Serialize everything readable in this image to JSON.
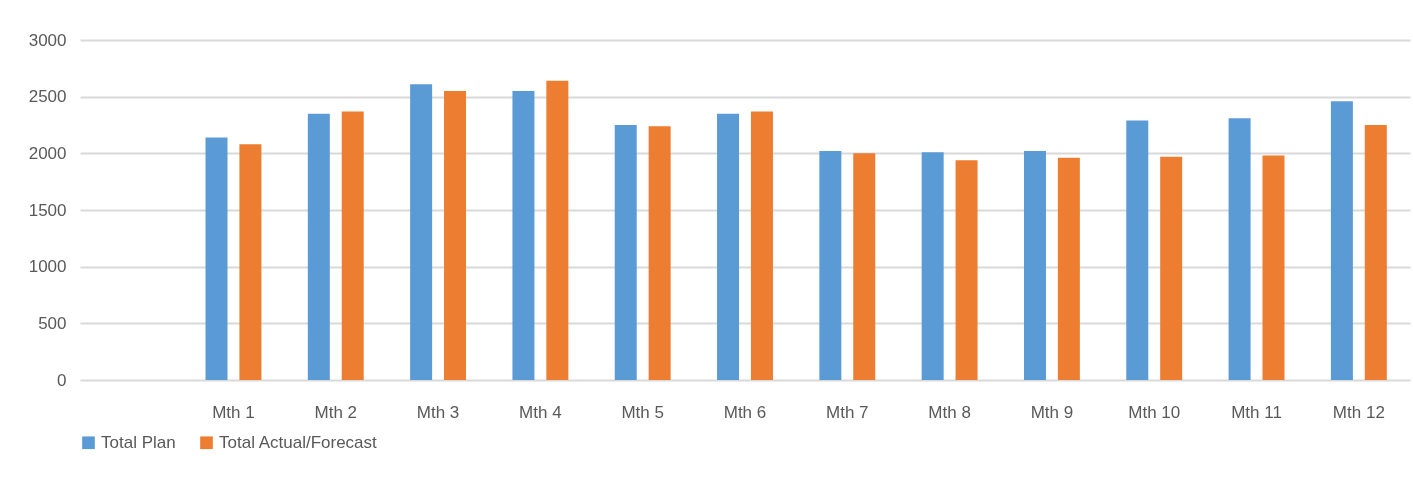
{
  "chart_data": {
    "type": "bar",
    "categories": [
      null,
      "Mth 1",
      "Mth 2",
      "Mth 3",
      "Mth 4",
      "Mth 5",
      "Mth 6",
      "Mth 7",
      "Mth 8",
      "Mth 9",
      "Mth 10",
      "Mth 11",
      "Mth 12"
    ],
    "series": [
      {
        "name": "Total Plan",
        "color": "#5b9bd5",
        "values": [
          null,
          2140,
          2350,
          2610,
          2550,
          2250,
          2350,
          2020,
          2010,
          2020,
          2290,
          2310,
          2460
        ]
      },
      {
        "name": "Total Actual/Forecast",
        "color": "#ed7d31",
        "values": [
          null,
          2080,
          2370,
          2550,
          2640,
          2240,
          2370,
          2000,
          1940,
          1960,
          1970,
          1980,
          2250
        ]
      }
    ],
    "ylim": [
      0,
      3000
    ],
    "yticks": [
      0,
      500,
      1000,
      1500,
      2000,
      2500,
      3000
    ],
    "grid": "y",
    "legend": "bottom"
  }
}
